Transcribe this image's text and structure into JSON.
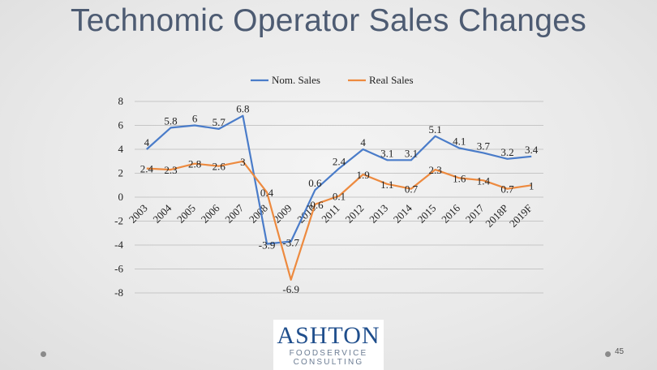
{
  "slide": {
    "title": "Technomic Operator Sales Changes",
    "page_number": "45",
    "logo": {
      "word": "ASHTON",
      "line1": "FOODSERVICE",
      "line2": "CONSULTING"
    }
  },
  "chart_data": {
    "type": "line",
    "title": "",
    "xlabel": "",
    "ylabel": "",
    "categories": [
      "2003",
      "2004",
      "2005",
      "2006",
      "2007",
      "2008",
      "2009",
      "2010",
      "2011",
      "2012",
      "2013",
      "2014",
      "2015",
      "2016",
      "2017",
      "2018P",
      "2019F"
    ],
    "series": [
      {
        "name": "Nom. Sales",
        "color": "#4a7cc9",
        "values": [
          4,
          5.8,
          6,
          5.7,
          6.8,
          -3.9,
          -3.7,
          0.6,
          2.4,
          4,
          3.1,
          3.1,
          5.1,
          4.1,
          3.7,
          3.2,
          3.4
        ]
      },
      {
        "name": "Real Sales",
        "color": "#ed8a3f",
        "values": [
          2.4,
          2.3,
          2.8,
          2.6,
          3,
          0.4,
          -6.9,
          -0.6,
          0.1,
          1.9,
          1.1,
          0.7,
          2.3,
          1.6,
          1.4,
          0.7,
          1
        ]
      }
    ],
    "ylim": [
      -8,
      8
    ],
    "y_ticks": [
      8,
      6,
      4,
      2,
      0,
      -2,
      -4,
      -6,
      -8
    ],
    "grid": true,
    "legend": "top"
  }
}
